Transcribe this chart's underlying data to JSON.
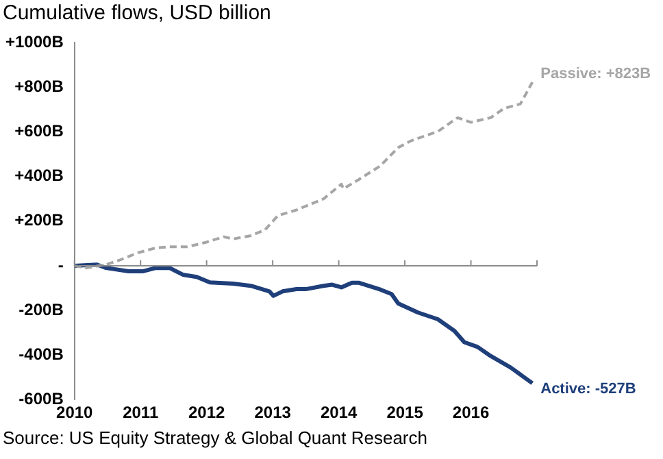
{
  "chart_data": {
    "type": "line",
    "title": "Cumulative flows, USD billion",
    "annotations": [
      "Source: US Equity Strategy & Global Quant Research"
    ],
    "xlim": [
      2010,
      2017
    ],
    "xticks": [
      2010,
      2011,
      2012,
      2013,
      2014,
      2015,
      2016
    ],
    "ylim": [
      -600,
      1000
    ],
    "yticks": [
      {
        "value": -600,
        "label": "-600B"
      },
      {
        "value": -400,
        "label": "-400B"
      },
      {
        "value": -200,
        "label": "-200B"
      },
      {
        "value": 0,
        "label": "-"
      },
      {
        "value": 200,
        "label": "+200B"
      },
      {
        "value": 400,
        "label": "+400B"
      },
      {
        "value": 600,
        "label": "+600B"
      },
      {
        "value": 800,
        "label": "+800B"
      },
      {
        "value": 1000,
        "label": "+1000B"
      }
    ],
    "grid": false,
    "legend": false,
    "marker": "none",
    "ref_lines": [
      {
        "axis": "y",
        "value": 0,
        "color": "#8c8c8c"
      }
    ],
    "series": [
      {
        "name": "Passive:",
        "color": "#a6a6a6",
        "line_style": "dashed",
        "x": [
          2010,
          2010.17,
          2010.48,
          2010.68,
          2010.96,
          2011.23,
          2011.44,
          2011.71,
          2011.99,
          2012.26,
          2012.4,
          2012.67,
          2012.88,
          2013.08,
          2013.36,
          2013.77,
          2014.04,
          2014.07,
          2014.3,
          2014.63,
          2014.9,
          2015.1,
          2015.5,
          2015.8,
          2016,
          2016.3,
          2016.5,
          2016.75,
          2016.93
        ],
        "values": [
          0,
          -10,
          5,
          25,
          58,
          80,
          85,
          85,
          105,
          130,
          120,
          135,
          160,
          225,
          250,
          300,
          366,
          345,
          386,
          448,
          530,
          561,
          602,
          664,
          643,
          664,
          705,
          726,
          823
        ],
        "value_labels": [
          null,
          null,
          null,
          null,
          null,
          null,
          null,
          null,
          null,
          null,
          null,
          null,
          null,
          null,
          null,
          null,
          null,
          null,
          null,
          null,
          null,
          null,
          null,
          null,
          null,
          null,
          null,
          null,
          "+823B"
        ]
      },
      {
        "name": "Active:",
        "color": "#1f3f7a",
        "line_style": "solid",
        "x": [
          2010,
          2010.34,
          2010.48,
          2010.82,
          2011.03,
          2011.23,
          2011.44,
          2011.64,
          2011.85,
          2012.05,
          2012.4,
          2012.67,
          2012.95,
          2013.01,
          2013.15,
          2013.36,
          2013.5,
          2013.77,
          2013.9,
          2014.04,
          2014.2,
          2014.3,
          2014.63,
          2014.8,
          2014.9,
          2015.2,
          2015.5,
          2015.75,
          2015.9,
          2016.1,
          2016.3,
          2016.6,
          2016.93
        ],
        "values": [
          0,
          5,
          -10,
          -25,
          -25,
          -10,
          -10,
          -40,
          -50,
          -75,
          -80,
          -90,
          -115,
          -135,
          -115,
          -105,
          -105,
          -90,
          -85,
          -97,
          -76,
          -76,
          -107,
          -127,
          -169,
          -210,
          -240,
          -292,
          -343,
          -364,
          -405,
          -456,
          -527
        ],
        "value_labels": [
          null,
          null,
          null,
          null,
          null,
          null,
          null,
          null,
          null,
          null,
          null,
          null,
          null,
          null,
          null,
          null,
          null,
          null,
          null,
          null,
          null,
          null,
          null,
          null,
          null,
          null,
          null,
          null,
          null,
          null,
          null,
          null,
          "-527B"
        ]
      }
    ]
  }
}
